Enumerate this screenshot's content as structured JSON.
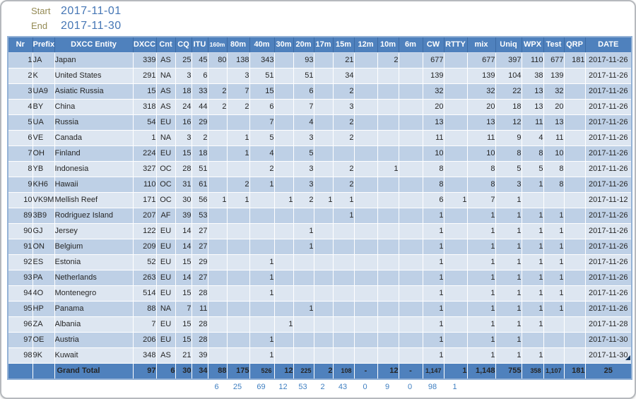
{
  "meta": {
    "start_label": "Start",
    "start_value": "2017-11-01",
    "end_label": "End",
    "end_value": "2017-11-30"
  },
  "colors": {
    "header_bg": "#4f81bd",
    "row_dark": "#bed0e6",
    "row_light": "#dde6f1",
    "date_text": "#4a7dbd",
    "counts_text": "#3f7fc1",
    "label_olive": "#948a54",
    "value_blue": "#4576b5"
  },
  "table": {
    "columns": [
      "Nr",
      "Prefix",
      "DXCC Entity",
      "DXCC",
      "Cnt",
      "CQ",
      "ITU",
      "160m",
      "80m",
      "40m",
      "30m",
      "20m",
      "17m",
      "15m",
      "12m",
      "10m",
      "6m",
      "CW",
      "RTTY",
      "mix",
      "Uniq",
      "WPX",
      "Test",
      "QRP",
      "DATE"
    ],
    "rows": [
      [
        "1",
        "JA",
        "Japan",
        "339",
        "AS",
        "25",
        "45",
        "80",
        "138",
        "343",
        "",
        "93",
        "",
        "21",
        "",
        "2",
        "",
        "677",
        "",
        "677",
        "397",
        "110",
        "677",
        "181",
        "2017-11-26"
      ],
      [
        "2",
        "K",
        "United States",
        "291",
        "NA",
        "3",
        "6",
        "",
        "3",
        "51",
        "",
        "51",
        "",
        "34",
        "",
        "",
        "",
        "139",
        "",
        "139",
        "104",
        "38",
        "139",
        "",
        "2017-11-26"
      ],
      [
        "3",
        "UA9",
        "Asiatic Russia",
        "15",
        "AS",
        "18",
        "33",
        "2",
        "7",
        "15",
        "",
        "6",
        "",
        "2",
        "",
        "",
        "",
        "32",
        "",
        "32",
        "22",
        "13",
        "32",
        "",
        "2017-11-26"
      ],
      [
        "4",
        "BY",
        "China",
        "318",
        "AS",
        "24",
        "44",
        "2",
        "2",
        "6",
        "",
        "7",
        "",
        "3",
        "",
        "",
        "",
        "20",
        "",
        "20",
        "18",
        "13",
        "20",
        "",
        "2017-11-26"
      ],
      [
        "5",
        "UA",
        "Russia",
        "54",
        "EU",
        "16",
        "29",
        "",
        "",
        "7",
        "",
        "4",
        "",
        "2",
        "",
        "",
        "",
        "13",
        "",
        "13",
        "12",
        "11",
        "13",
        "",
        "2017-11-26"
      ],
      [
        "6",
        "VE",
        "Canada",
        "1",
        "NA",
        "3",
        "2",
        "",
        "1",
        "5",
        "",
        "3",
        "",
        "2",
        "",
        "",
        "",
        "11",
        "",
        "11",
        "9",
        "4",
        "11",
        "",
        "2017-11-26"
      ],
      [
        "7",
        "OH",
        "Finland",
        "224",
        "EU",
        "15",
        "18",
        "",
        "1",
        "4",
        "",
        "5",
        "",
        "",
        "",
        "",
        "",
        "10",
        "",
        "10",
        "8",
        "8",
        "10",
        "",
        "2017-11-26"
      ],
      [
        "8",
        "YB",
        "Indonesia",
        "327",
        "OC",
        "28",
        "51",
        "",
        "",
        "2",
        "",
        "3",
        "",
        "2",
        "",
        "1",
        "",
        "8",
        "",
        "8",
        "5",
        "5",
        "8",
        "",
        "2017-11-26"
      ],
      [
        "9",
        "KH6",
        "Hawaii",
        "110",
        "OC",
        "31",
        "61",
        "",
        "2",
        "1",
        "",
        "3",
        "",
        "2",
        "",
        "",
        "",
        "8",
        "",
        "8",
        "3",
        "1",
        "8",
        "",
        "2017-11-26"
      ],
      [
        "10",
        "VK9M",
        "Mellish Reef",
        "171",
        "OC",
        "30",
        "56",
        "1",
        "1",
        "",
        "1",
        "2",
        "1",
        "1",
        "",
        "",
        "",
        "6",
        "1",
        "7",
        "1",
        "",
        "",
        "",
        "2017-11-12"
      ],
      [
        "89",
        "3B9",
        "Rodriguez Island",
        "207",
        "AF",
        "39",
        "53",
        "",
        "",
        "",
        "",
        "",
        "",
        "1",
        "",
        "",
        "",
        "1",
        "",
        "1",
        "1",
        "1",
        "1",
        "",
        "2017-11-26"
      ],
      [
        "90",
        "GJ",
        "Jersey",
        "122",
        "EU",
        "14",
        "27",
        "",
        "",
        "",
        "",
        "1",
        "",
        "",
        "",
        "",
        "",
        "1",
        "",
        "1",
        "1",
        "1",
        "1",
        "",
        "2017-11-26"
      ],
      [
        "91",
        "ON",
        "Belgium",
        "209",
        "EU",
        "14",
        "27",
        "",
        "",
        "",
        "",
        "1",
        "",
        "",
        "",
        "",
        "",
        "1",
        "",
        "1",
        "1",
        "1",
        "1",
        "",
        "2017-11-26"
      ],
      [
        "92",
        "ES",
        "Estonia",
        "52",
        "EU",
        "15",
        "29",
        "",
        "",
        "1",
        "",
        "",
        "",
        "",
        "",
        "",
        "",
        "1",
        "",
        "1",
        "1",
        "1",
        "1",
        "",
        "2017-11-26"
      ],
      [
        "93",
        "PA",
        "Netherlands",
        "263",
        "EU",
        "14",
        "27",
        "",
        "",
        "1",
        "",
        "",
        "",
        "",
        "",
        "",
        "",
        "1",
        "",
        "1",
        "1",
        "1",
        "1",
        "",
        "2017-11-26"
      ],
      [
        "94",
        "4O",
        "Montenegro",
        "514",
        "EU",
        "15",
        "28",
        "",
        "",
        "1",
        "",
        "",
        "",
        "",
        "",
        "",
        "",
        "1",
        "",
        "1",
        "1",
        "1",
        "1",
        "",
        "2017-11-26"
      ],
      [
        "95",
        "HP",
        "Panama",
        "88",
        "NA",
        "7",
        "11",
        "",
        "",
        "",
        "",
        "1",
        "",
        "",
        "",
        "",
        "",
        "1",
        "",
        "1",
        "1",
        "1",
        "1",
        "",
        "2017-11-26"
      ],
      [
        "96",
        "ZA",
        "Albania",
        "7",
        "EU",
        "15",
        "28",
        "",
        "",
        "",
        "1",
        "",
        "",
        "",
        "",
        "",
        "",
        "1",
        "",
        "1",
        "1",
        "1",
        "",
        "",
        "2017-11-28"
      ],
      [
        "97",
        "OE",
        "Austria",
        "206",
        "EU",
        "15",
        "28",
        "",
        "",
        "1",
        "",
        "",
        "",
        "",
        "",
        "",
        "",
        "1",
        "",
        "1",
        "1",
        "",
        "",
        "",
        "2017-11-30"
      ],
      [
        "98",
        "9K",
        "Kuwait",
        "348",
        "AS",
        "21",
        "39",
        "",
        "",
        "1",
        "",
        "",
        "",
        "",
        "",
        "",
        "",
        "1",
        "",
        "1",
        "1",
        "1",
        "",
        "",
        "2017-11-30"
      ]
    ],
    "grand_total": [
      "",
      "",
      "Grand Total",
      "97",
      "6",
      "30",
      "34",
      "88",
      "175",
      "526",
      "12",
      "225",
      "2",
      "108",
      "-",
      "12",
      "-",
      "1,147",
      "1",
      "1,148",
      "755",
      "358",
      "1,107",
      "181",
      "25"
    ],
    "band_counts": [
      "",
      "",
      "",
      "",
      "",
      "",
      "",
      "6",
      "25",
      "69",
      "12",
      "53",
      "2",
      "43",
      "0",
      "9",
      "0",
      "98",
      "1",
      "",
      "",
      "",
      "",
      "",
      ""
    ]
  }
}
